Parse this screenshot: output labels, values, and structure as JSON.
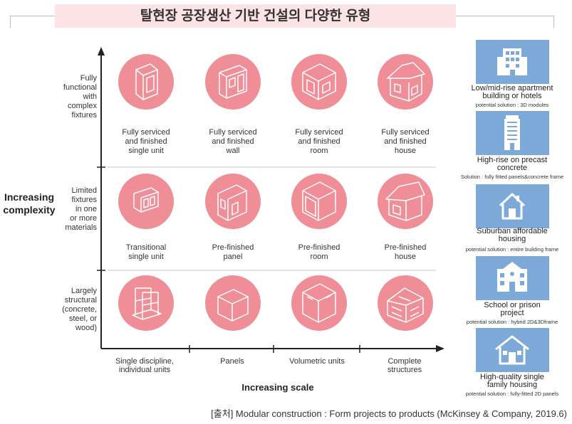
{
  "title": "탈현장 공장생산 기반 건설의 다양한 유형",
  "y_axis": {
    "title": [
      "Increasing",
      "complexity"
    ],
    "levels": [
      [
        "Fully",
        "functional",
        "with",
        "complex",
        "fixtures"
      ],
      [
        "Limited",
        "fixtures",
        "in one",
        "or more",
        "materials"
      ],
      [
        "Largely",
        "structural",
        "(concrete,",
        "steel, or",
        "wood)"
      ]
    ]
  },
  "x_axis": {
    "title": "Increasing scale",
    "categories": [
      [
        "Single discipline,",
        "individual units"
      ],
      [
        "Panels"
      ],
      [
        "Volumetric units"
      ],
      [
        "Complete",
        "structures"
      ]
    ]
  },
  "grid": [
    [
      {
        "label": [
          "Fully serviced",
          "and finished",
          "single unit"
        ],
        "icon": "finished-unit-icon"
      },
      {
        "label": [
          "Fully serviced",
          "and finished",
          "wall"
        ],
        "icon": "finished-wall-icon"
      },
      {
        "label": [
          "Fully serviced",
          "and finished",
          "room"
        ],
        "icon": "finished-room-icon"
      },
      {
        "label": [
          "Fully serviced",
          "and finished",
          "house"
        ],
        "icon": "finished-house-icon"
      }
    ],
    [
      {
        "label": [
          "Transitional",
          "single unit"
        ],
        "icon": "transitional-unit-icon"
      },
      {
        "label": [
          "Pre-finished",
          "panel"
        ],
        "icon": "prefinished-panel-icon"
      },
      {
        "label": [
          "Pre-finished",
          "room"
        ],
        "icon": "prefinished-room-icon"
      },
      {
        "label": [
          "Pre-finished",
          "house"
        ],
        "icon": "prefinished-house-icon"
      }
    ],
    [
      {
        "label": [],
        "icon": "structural-frame-icon"
      },
      {
        "label": [],
        "icon": "structural-panel-icon"
      },
      {
        "label": [],
        "icon": "structural-module-icon"
      },
      {
        "label": [],
        "icon": "structural-building-icon"
      }
    ]
  ],
  "projects": [
    {
      "title": [
        "Low/mid-rise apartment",
        "building or hotels"
      ],
      "solution": "potential solution : 3D modules",
      "icon": "apartment-building-icon"
    },
    {
      "title": [
        "High-rise on precast",
        "concrete"
      ],
      "solution": "Solution : fully fitted panels&concrete frame",
      "icon": "high-rise-icon"
    },
    {
      "title": [
        "Suburban affordable",
        "housing"
      ],
      "solution": "potential solution : entire building frame",
      "icon": "suburban-house-icon"
    },
    {
      "title": [
        "School or prison",
        "project"
      ],
      "solution": "potential solution : hybrid 2D&3Dframe",
      "icon": "school-building-icon"
    },
    {
      "title": [
        "High-quality single",
        "family housing"
      ],
      "solution": "potential solution : fully-fitted 2D panels",
      "icon": "family-house-icon"
    }
  ],
  "source": "[출처] Modular construction : Form projects to products (McKinsey & Company, 2019.6)",
  "colors": {
    "circle": "#ef8e96",
    "box": "#7da9d8",
    "title_bg": "#fbe3e6"
  }
}
